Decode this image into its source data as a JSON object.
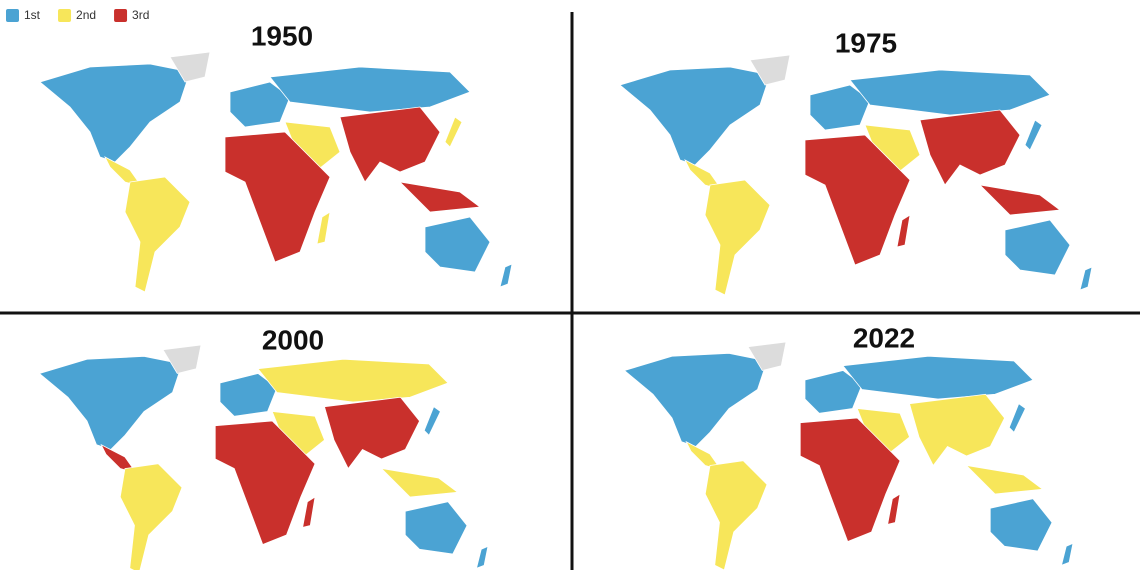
{
  "legend": [
    {
      "label": "1st",
      "color": "#4ba3d3"
    },
    {
      "label": "2nd",
      "color": "#f7e65a"
    },
    {
      "label": "3rd",
      "color": "#c9302c"
    }
  ],
  "maps": [
    {
      "title": "1950"
    },
    {
      "title": "1975"
    },
    {
      "title": "2000"
    },
    {
      "title": "2022"
    }
  ]
}
